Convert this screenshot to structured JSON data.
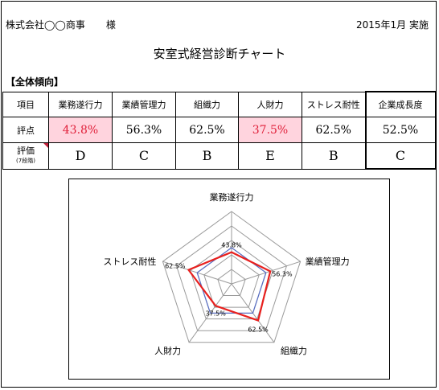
{
  "header": {
    "company": "株式会社◯◯商事",
    "honorific": "様",
    "date": "2015年1月 実施"
  },
  "title": "安室式経営診断チャート",
  "section_label": "【全体傾向】",
  "table": {
    "row_labels": {
      "item": "項目",
      "score": "評点",
      "rating": "評価",
      "rating_note": "(7段階)"
    },
    "columns": [
      {
        "name": "業務遂行力",
        "score": "43.8%",
        "grade": "D",
        "highlight": true
      },
      {
        "name": "業績管理力",
        "score": "56.3%",
        "grade": "C",
        "highlight": false
      },
      {
        "name": "組織力",
        "score": "62.5%",
        "grade": "B",
        "highlight": false
      },
      {
        "name": "人財力",
        "score": "37.5%",
        "grade": "E",
        "highlight": true
      },
      {
        "name": "ストレス耐性",
        "score": "62.5%",
        "grade": "B",
        "highlight": false
      },
      {
        "name": "企業成長度",
        "score": "52.5%",
        "grade": "C",
        "highlight": false
      }
    ]
  },
  "chart_data": {
    "type": "radar",
    "categories": [
      "業務遂行力",
      "業績管理力",
      "組織力",
      "人財力",
      "ストレス耐性"
    ],
    "series": [
      {
        "values": [
          43.8,
          56.3,
          62.5,
          37.5,
          62.5
        ],
        "color": "#e8201e"
      },
      {
        "values": [
          50,
          50,
          50,
          50,
          50
        ],
        "color": "#5a6fc0"
      }
    ],
    "data_labels": [
      "43.8%",
      "56.3%",
      "62.5%",
      "37.5%",
      "62.5%"
    ],
    "rmax": 100,
    "rings": 5
  }
}
